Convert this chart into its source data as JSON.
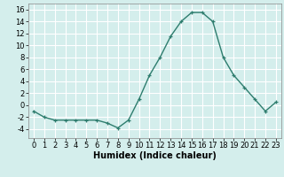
{
  "x": [
    0,
    1,
    2,
    3,
    4,
    5,
    6,
    7,
    8,
    9,
    10,
    11,
    12,
    13,
    14,
    15,
    16,
    17,
    18,
    19,
    20,
    21,
    22,
    23
  ],
  "y": [
    -1.0,
    -2.0,
    -2.5,
    -2.5,
    -2.5,
    -2.5,
    -2.5,
    -3.0,
    -3.8,
    -2.5,
    1.0,
    5.0,
    8.0,
    11.5,
    14.0,
    15.5,
    15.5,
    14.0,
    8.0,
    5.0,
    3.0,
    1.0,
    -1.0,
    0.5
  ],
  "line_color": "#2e7d6e",
  "marker": "+",
  "marker_color": "#2e7d6e",
  "bg_color": "#d4eeec",
  "grid_color": "#ffffff",
  "xlabel": "Humidex (Indice chaleur)",
  "ylim": [
    -5.5,
    17.0
  ],
  "xlim": [
    -0.5,
    23.5
  ],
  "yticks": [
    -4,
    -2,
    0,
    2,
    4,
    6,
    8,
    10,
    12,
    14,
    16
  ],
  "xticks": [
    0,
    1,
    2,
    3,
    4,
    5,
    6,
    7,
    8,
    9,
    10,
    11,
    12,
    13,
    14,
    15,
    16,
    17,
    18,
    19,
    20,
    21,
    22,
    23
  ],
  "xlabel_fontsize": 7.0,
  "tick_fontsize": 6.0,
  "line_width": 1.0,
  "marker_size": 3.5
}
